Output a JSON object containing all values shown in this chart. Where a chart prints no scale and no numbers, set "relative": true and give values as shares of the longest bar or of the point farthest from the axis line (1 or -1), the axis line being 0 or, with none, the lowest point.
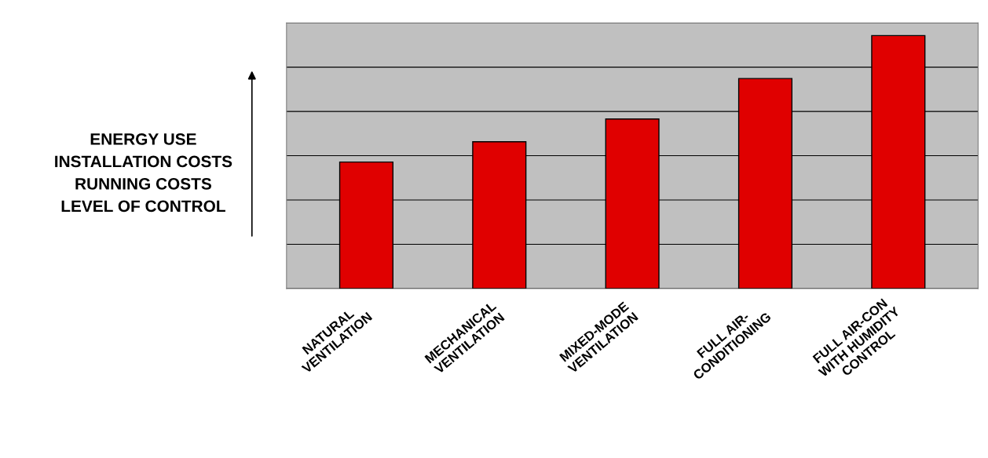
{
  "chart_data": {
    "type": "bar",
    "relative": true,
    "categories": [
      "NATURAL\nVENTILATION",
      "MECHANICAL\nVENTILATION",
      "MIXED-MODE\nVENTILATION",
      "FULL AIR-\nCONDITIONING",
      "FULL AIR-CON\nWITH HUMIDITY\nCONTROL"
    ],
    "values": [
      0.5,
      0.58,
      0.67,
      0.83,
      1.0
    ],
    "color": "#e00000",
    "ylabel": "ENERGY USE\nINSTALLATION COSTS\nRUNNING COSTS\nLEVEL OF CONTROL",
    "grid": "y"
  }
}
